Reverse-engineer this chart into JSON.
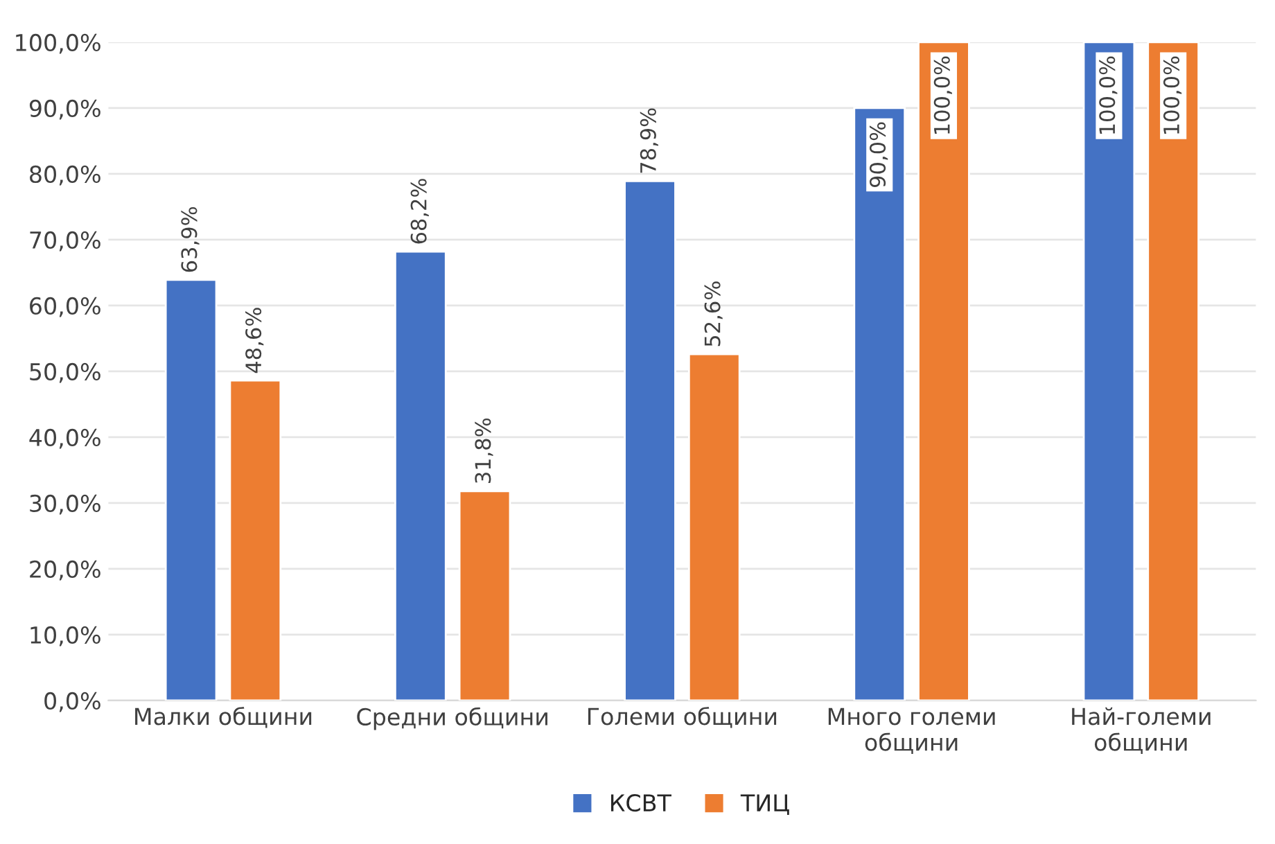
{
  "chart_data": {
    "type": "bar",
    "categories": [
      "Малки общини",
      "Средни общини",
      "Големи общини",
      "Много големи\nобщини",
      "Най-големи\nобщини"
    ],
    "series": [
      {
        "name": "КСВТ",
        "color": "#4472c4",
        "values": [
          63.9,
          68.2,
          78.9,
          90.0,
          100.0
        ],
        "value_labels": [
          "63,9%",
          "68,2%",
          "78,9%",
          "90,0%",
          "100,0%"
        ]
      },
      {
        "name": "ТИЦ",
        "color": "#ed7d31",
        "values": [
          48.6,
          31.8,
          52.6,
          100.0,
          100.0
        ],
        "value_labels": [
          "48,6%",
          "31,8%",
          "52,6%",
          "100,0%",
          "100,0%"
        ]
      }
    ],
    "ylim": [
      0,
      100
    ],
    "yticks": [
      {
        "value": 0,
        "label": "0,0%"
      },
      {
        "value": 10,
        "label": "10,0%"
      },
      {
        "value": 20,
        "label": "20,0%"
      },
      {
        "value": 30,
        "label": "30,0%"
      },
      {
        "value": 40,
        "label": "40,0%"
      },
      {
        "value": 50,
        "label": "50,0%"
      },
      {
        "value": 60,
        "label": "60,0%"
      },
      {
        "value": 70,
        "label": "70,0%"
      },
      {
        "value": 80,
        "label": "80,0%"
      },
      {
        "value": 90,
        "label": "90,0%"
      },
      {
        "value": 100,
        "label": "100,0%"
      }
    ],
    "grid": "y",
    "legend": "bottom"
  }
}
